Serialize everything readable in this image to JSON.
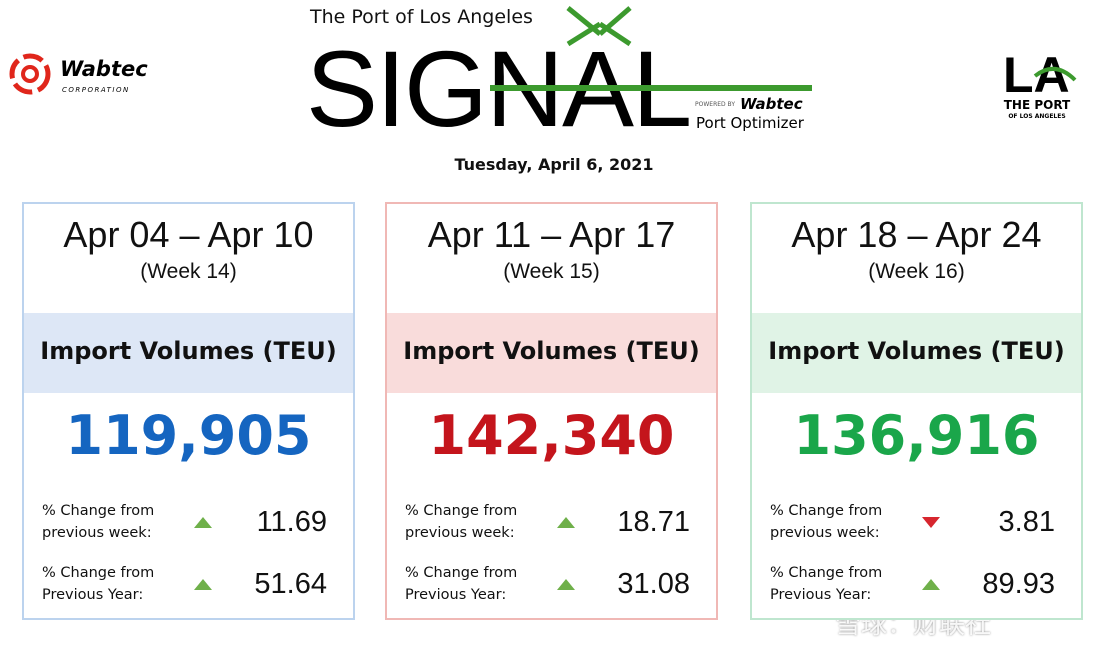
{
  "header": {
    "port_title": "The Port of Los Angeles",
    "logo": "SIGNAL",
    "powered_by": "POWERED BY",
    "sponsor": "Wabtec",
    "product": "Port Optimizer",
    "left_logo": {
      "name": "Wabtec",
      "subtitle": "CORPORATION"
    },
    "right_logo": {
      "mark": "LA",
      "name": "THE PORT",
      "subtitle": "OF LOS ANGELES"
    }
  },
  "date": "Tuesday, April 6, 2021",
  "cards": [
    {
      "range": "Apr 04 – Apr 10",
      "week": "(Week 14)",
      "metric": "Import Volumes (TEU)",
      "value": "119,905",
      "color": "#1565c0",
      "band": "#dde7f6",
      "border": "#bcd3ee",
      "changes": [
        {
          "label": "% Change from previous week:",
          "value": 11.69,
          "direction": "up"
        },
        {
          "label": "% Change from Previous Year:",
          "value": 51.64,
          "direction": "up"
        }
      ]
    },
    {
      "range": "Apr 11 – Apr 17",
      "week": "(Week 15)",
      "metric": "Import Volumes (TEU)",
      "value": "142,340",
      "color": "#c4151c",
      "band": "#f9dcdb",
      "border": "#f0b8b5",
      "changes": [
        {
          "label": "% Change from previous week:",
          "value": 18.71,
          "direction": "up"
        },
        {
          "label": "% Change from Previous Year:",
          "value": 31.08,
          "direction": "up"
        }
      ]
    },
    {
      "range": "Apr 18 – Apr 24",
      "week": "(Week 16)",
      "metric": "Import Volumes (TEU)",
      "value": "136,916",
      "color": "#1aa64a",
      "band": "#e0f3e6",
      "border": "#bfe6cf",
      "changes": [
        {
          "label": "% Change from previous week:",
          "value": 3.81,
          "direction": "down"
        },
        {
          "label": "% Change from Previous Year:",
          "value": 89.93,
          "direction": "up"
        }
      ]
    }
  ],
  "watermark": "雪球：财联社"
}
